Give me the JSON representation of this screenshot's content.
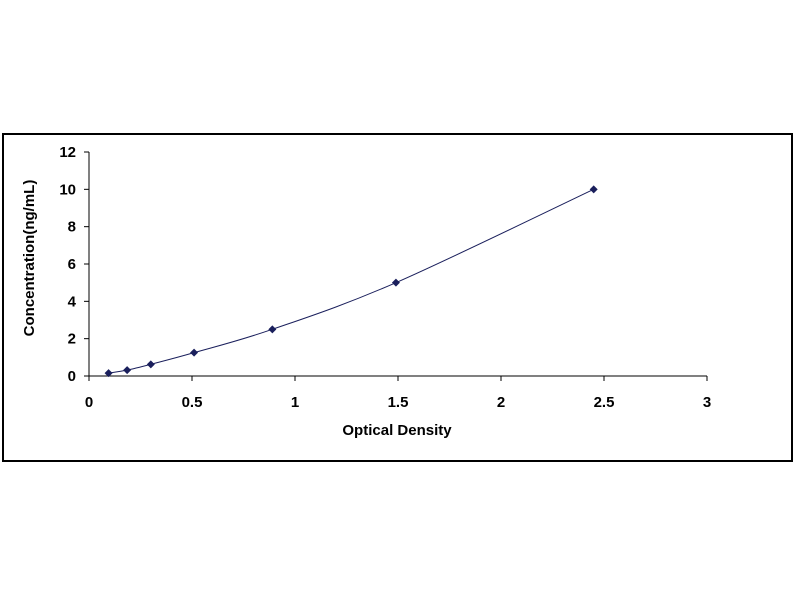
{
  "chart_data": {
    "type": "scatter",
    "title": "",
    "xlabel": "Optical Density",
    "ylabel": "Concentration(ng/mL)",
    "xlim": [
      0,
      3
    ],
    "ylim": [
      0,
      12
    ],
    "x_ticks": [
      "0",
      "0.5",
      "1",
      "1.5",
      "2",
      "2.5",
      "3"
    ],
    "y_ticks": [
      "0",
      "2",
      "4",
      "6",
      "8",
      "10",
      "12"
    ],
    "grid": false,
    "legend": "none",
    "trendline": "smooth curve",
    "series": [
      {
        "x": [
          0.095,
          0.185,
          0.3,
          0.51,
          0.89,
          1.49,
          2.45
        ],
        "y": [
          0.156,
          0.313,
          0.625,
          1.25,
          2.5,
          5,
          10
        ]
      }
    ],
    "colors": {
      "marker": "#1a1f5c",
      "line": "#1a1f5c",
      "axis": "#000000"
    }
  }
}
